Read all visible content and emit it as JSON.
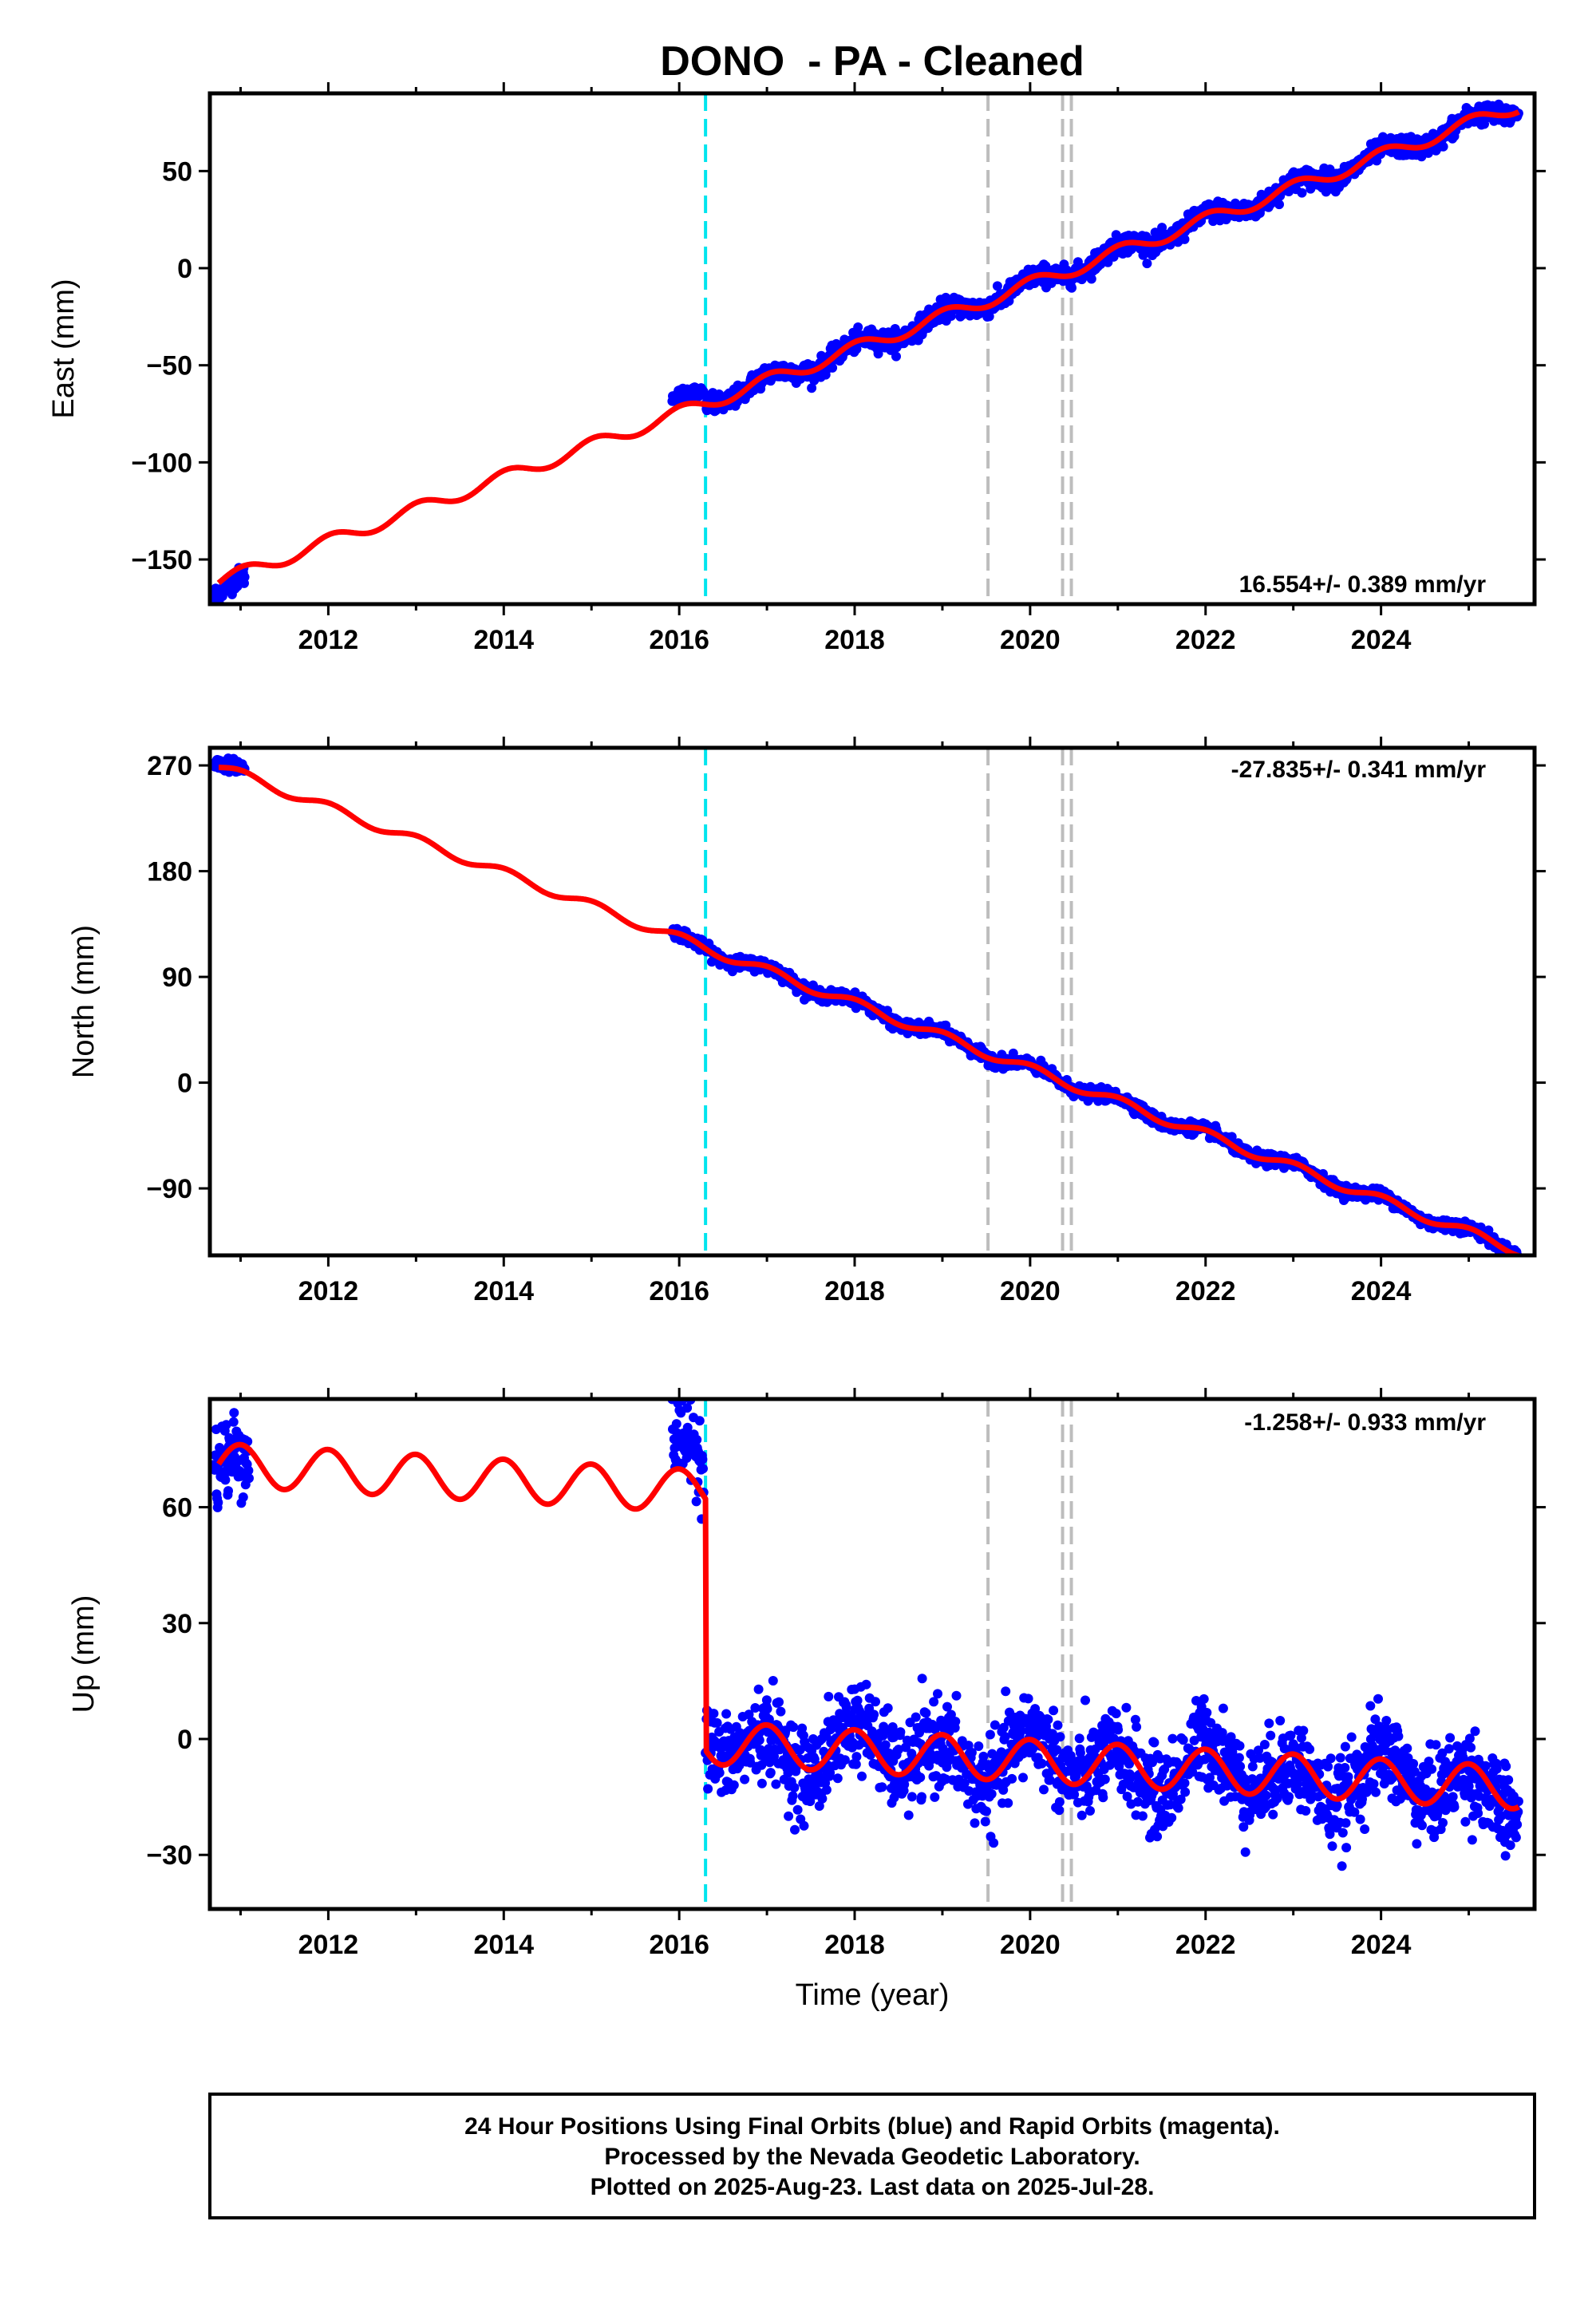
{
  "title": "DONO  - PA - Cleaned",
  "xlabel": "Time (year)",
  "footer": {
    "line1": "24 Hour Positions Using Final Orbits (blue) and Rapid Orbits (magenta).",
    "line2": "Processed by the Nevada Geodetic Laboratory.",
    "line3": "Plotted on 2025-Aug-23. Last data on 2025-Jul-28."
  },
  "colors": {
    "data_points": "#0000ff",
    "model_fit": "#ff0000",
    "antenna_change": "#00e5ee",
    "equipment_change": "#bdbdbd",
    "frame": "#000000"
  },
  "chart_data": [
    {
      "type": "scatter",
      "component": "East",
      "ylabel": "East (mm)",
      "rate_label": "16.554+/- 0.389 mm/yr",
      "xlim": [
        2010.65,
        2025.75
      ],
      "ylim": [
        -173,
        90
      ],
      "xticks": [
        2012,
        2014,
        2016,
        2018,
        2020,
        2022,
        2024
      ],
      "yticks": [
        -150,
        -100,
        -50,
        0,
        50
      ],
      "ytick_labels": [
        "−150",
        "−100",
        "−50",
        "0",
        "50"
      ],
      "rate_mm_per_yr": 16.554,
      "model": {
        "x0": 2010.75,
        "y0": -161.5,
        "seasonal_amp": 3.5,
        "seasonal_phase": 1.4,
        "offsets": []
      },
      "data_segments": [
        {
          "x": [
            2010.7,
            2011.05
          ],
          "y_offset": -5,
          "noise": 2.5
        },
        {
          "x": [
            2015.92,
            2016.28
          ],
          "y_offset": 6,
          "noise": 1.5
        },
        {
          "x": [
            2016.3,
            2025.57
          ],
          "y_offset": 0,
          "noise": 2.5
        }
      ],
      "antenna_change": [
        2016.3
      ],
      "equipment_changes": [
        2019.52,
        2020.37,
        2020.47
      ]
    },
    {
      "type": "scatter",
      "component": "North",
      "ylabel": "North (mm)",
      "rate_label": "-27.835+/- 0.341 mm/yr",
      "xlim": [
        2010.65,
        2025.75
      ],
      "ylim": [
        -147,
        285
      ],
      "xticks": [
        2012,
        2014,
        2016,
        2018,
        2020,
        2022,
        2024
      ],
      "yticks": [
        -90,
        0,
        90,
        180,
        270
      ],
      "ytick_labels": [
        "−90",
        "0",
        "90",
        "180",
        "270"
      ],
      "rate_mm_per_yr": -27.835,
      "model": {
        "x0": 2010.75,
        "y0": 269,
        "seasonal_amp": 4,
        "seasonal_phase": 1.4,
        "offsets": []
      },
      "data_segments": [
        {
          "x": [
            2010.7,
            2011.05
          ],
          "y_offset": 3,
          "noise": 2.5
        },
        {
          "x": [
            2015.92,
            2025.57
          ],
          "y_offset": 0,
          "noise": 2.5
        }
      ],
      "antenna_change": [
        2016.3
      ],
      "equipment_changes": [
        2019.52,
        2020.37,
        2020.47
      ]
    },
    {
      "type": "scatter",
      "component": "Up",
      "ylabel": "Up (mm)",
      "rate_label": "-1.258+/- 0.933 mm/yr",
      "xlim": [
        2010.65,
        2025.75
      ],
      "ylim": [
        -44,
        88
      ],
      "xticks": [
        2012,
        2014,
        2016,
        2018,
        2020,
        2022,
        2024
      ],
      "yticks": [
        -30,
        0,
        30,
        60
      ],
      "ytick_labels": [
        "−30",
        "0",
        "30",
        "60"
      ],
      "rate_mm_per_yr": -1.258,
      "model": {
        "x0": 2010.75,
        "y0": 71,
        "seasonal_amp": 5.5,
        "seasonal_phase": 1.6,
        "offsets": [
          [
            2016.3,
            -65
          ]
        ]
      },
      "data_segments": [
        {
          "x": [
            2010.7,
            2011.1
          ],
          "y_offset": 0,
          "noise": 6
        },
        {
          "x": [
            2015.92,
            2016.28
          ],
          "y_offset": 7,
          "noise": 6
        },
        {
          "x": [
            2016.3,
            2025.57
          ],
          "y_offset": 0,
          "noise": 5.5
        }
      ],
      "antenna_change": [
        2016.3
      ],
      "equipment_changes": [
        2019.52,
        2020.37,
        2020.47
      ]
    }
  ]
}
